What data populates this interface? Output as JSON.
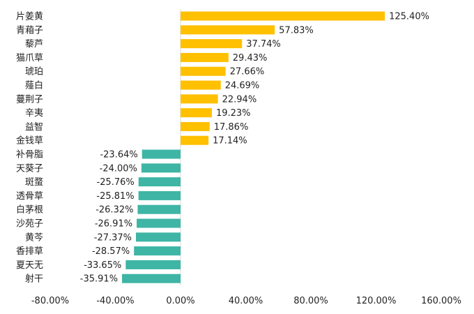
{
  "chart_data": {
    "type": "bar",
    "orientation": "horizontal",
    "categories": [
      "片姜黄",
      "青葙子",
      "藜芦",
      "猫爪草",
      "琥珀",
      "薤白",
      "蔓荆子",
      "辛夷",
      "益智",
      "金钱草",
      "补骨脂",
      "天葵子",
      "斑蝥",
      "透骨草",
      "白茅根",
      "沙苑子",
      "黄芩",
      "香排草",
      "夏天无",
      "射干"
    ],
    "values": [
      125.4,
      57.83,
      37.74,
      29.43,
      27.66,
      24.69,
      22.94,
      19.23,
      17.86,
      17.14,
      -23.64,
      -24.0,
      -25.76,
      -25.81,
      -26.32,
      -26.91,
      -27.37,
      -28.57,
      -33.65,
      -35.91
    ],
    "value_labels": [
      "125.40%",
      "57.83%",
      "37.74%",
      "29.43%",
      "27.66%",
      "24.69%",
      "22.94%",
      "19.23%",
      "17.86%",
      "17.14%",
      "-23.64%",
      "-24.00%",
      "-25.76%",
      "-25.81%",
      "-26.32%",
      "-26.91%",
      "-27.37%",
      "-28.57%",
      "-33.65%",
      "-35.91%"
    ],
    "xlim": [
      -80,
      160
    ],
    "xticks": [
      -80,
      -40,
      0,
      40,
      80,
      120,
      160
    ],
    "xtick_labels": [
      "-80.00%",
      "-40.00%",
      "0.00%",
      "40.00%",
      "80.00%",
      "120.00%",
      "160.00%"
    ],
    "title": "",
    "xlabel": "",
    "ylabel": "",
    "grid": false,
    "legend": "none",
    "colors": {
      "positive": "#FFC000",
      "negative": "#3EB5A5",
      "axis": "#D9D9D9",
      "text": "#222222"
    }
  }
}
